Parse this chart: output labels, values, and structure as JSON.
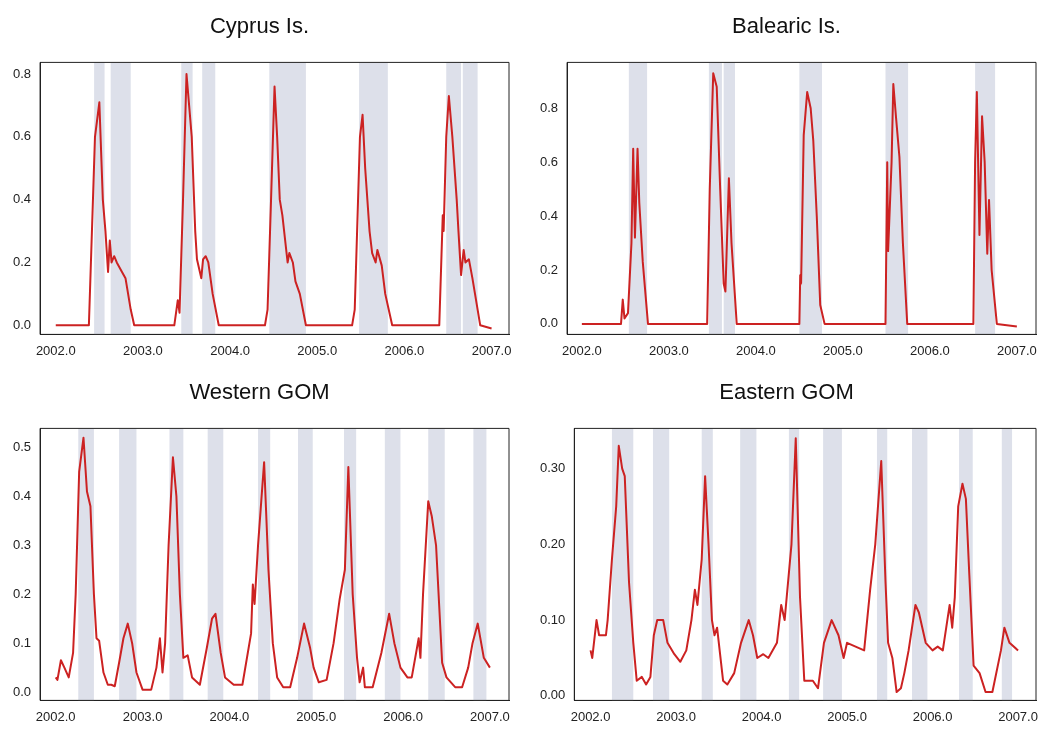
{
  "chart_data": [
    {
      "type": "line",
      "title": "Cyprus Is.",
      "color": "#cc2222",
      "xlim": [
        2001.82,
        2007.2
      ],
      "ylim": [
        -0.029,
        0.837
      ],
      "xticks": [
        {
          "value": 2002,
          "label": "2002.0"
        },
        {
          "value": 2003,
          "label": "2003.0"
        },
        {
          "value": 2004,
          "label": "2004.0"
        },
        {
          "value": 2005,
          "label": "2005.0"
        },
        {
          "value": 2006,
          "label": "2006.0"
        },
        {
          "value": 2007,
          "label": "2007.0"
        }
      ],
      "yticks": [
        {
          "value": 0,
          "label": "0.0"
        },
        0.2,
        0.4,
        0.6,
        0.8
      ],
      "bands": [
        {
          "axis": "x",
          "from": 2002.44,
          "to": 2002.56
        },
        {
          "axis": "x",
          "from": 2002.63,
          "to": 2002.86
        },
        {
          "axis": "x",
          "from": 2003.44,
          "to": 2003.57
        },
        {
          "axis": "x",
          "from": 2003.68,
          "to": 2003.83
        },
        {
          "axis": "x",
          "from": 2004.45,
          "to": 2004.87
        },
        {
          "axis": "x",
          "from": 2005.48,
          "to": 2005.81
        },
        {
          "axis": "x",
          "from": 2006.48,
          "to": 2006.65
        },
        {
          "axis": "x",
          "from": 2006.67,
          "to": 2006.84
        }
      ],
      "x": [
        2002.0,
        2002.38,
        2002.45,
        2002.5,
        2002.54,
        2002.57,
        2002.6,
        2002.62,
        2002.64,
        2002.67,
        2002.7,
        2002.76,
        2002.8,
        2002.86,
        2002.9,
        2003.36,
        2003.4,
        2003.42,
        2003.46,
        2003.5,
        2003.53,
        2003.56,
        2003.6,
        2003.62,
        2003.67,
        2003.69,
        2003.72,
        2003.75,
        2003.8,
        2003.87,
        2004.4,
        2004.43,
        2004.47,
        2004.51,
        2004.54,
        2004.57,
        2004.6,
        2004.66,
        2004.68,
        2004.72,
        2004.75,
        2004.8,
        2004.87,
        2005.4,
        2005.43,
        2005.49,
        2005.52,
        2005.55,
        2005.6,
        2005.63,
        2005.67,
        2005.69,
        2005.74,
        2005.78,
        2005.86,
        2006.4,
        2006.44,
        2006.45,
        2006.48,
        2006.51,
        2006.55,
        2006.6,
        2006.62,
        2006.65,
        2006.68,
        2006.7,
        2006.74,
        2006.78,
        2006.81,
        2006.87,
        2007.0
      ],
      "values": [
        0,
        0,
        0.6,
        0.71,
        0.4,
        0.3,
        0.17,
        0.27,
        0.2,
        0.22,
        0.2,
        0.17,
        0.15,
        0.05,
        0,
        0,
        0.08,
        0.04,
        0.4,
        0.8,
        0.7,
        0.6,
        0.3,
        0.21,
        0.15,
        0.21,
        0.22,
        0.2,
        0.1,
        0,
        0,
        0.05,
        0.4,
        0.76,
        0.6,
        0.4,
        0.35,
        0.2,
        0.23,
        0.2,
        0.14,
        0.1,
        0,
        0,
        0.05,
        0.6,
        0.67,
        0.5,
        0.3,
        0.23,
        0.2,
        0.24,
        0.19,
        0.1,
        0,
        0,
        0.35,
        0.3,
        0.6,
        0.73,
        0.6,
        0.4,
        0.3,
        0.16,
        0.24,
        0.2,
        0.21,
        0.15,
        0.1,
        0,
        -0.01
      ]
    },
    {
      "type": "line",
      "title": "Balearic Is.",
      "color": "#cc2222",
      "xlim": [
        2001.83,
        2007.22
      ],
      "ylim": [
        -0.039,
        0.97
      ],
      "xticks": [
        {
          "value": 2002,
          "label": "2002.0"
        },
        {
          "value": 2003,
          "label": "2003.0"
        },
        {
          "value": 2004,
          "label": "2004.0"
        },
        {
          "value": 2005,
          "label": "2005.0"
        },
        {
          "value": 2006,
          "label": "2006.0"
        },
        {
          "value": 2007,
          "label": "2007.0"
        }
      ],
      "yticks": [
        {
          "value": 0,
          "label": "0.0"
        },
        0.2,
        0.4,
        0.6,
        0.8
      ],
      "bands": [
        {
          "axis": "x",
          "from": 2002.54,
          "to": 2002.75
        },
        {
          "axis": "x",
          "from": 2003.46,
          "to": 2003.61
        },
        {
          "axis": "x",
          "from": 2003.63,
          "to": 2003.76
        },
        {
          "axis": "x",
          "from": 2004.5,
          "to": 2004.76
        },
        {
          "axis": "x",
          "from": 2005.49,
          "to": 2005.75
        },
        {
          "axis": "x",
          "from": 2006.52,
          "to": 2006.75
        }
      ],
      "x": [
        2002.0,
        2002.45,
        2002.47,
        2002.49,
        2002.53,
        2002.57,
        2002.59,
        2002.61,
        2002.64,
        2002.66,
        2002.7,
        2002.76,
        2003.44,
        2003.47,
        2003.51,
        2003.55,
        2003.59,
        2003.63,
        2003.65,
        2003.69,
        2003.72,
        2003.78,
        2004.5,
        2004.51,
        2004.52,
        2004.55,
        2004.59,
        2004.63,
        2004.66,
        2004.7,
        2004.74,
        2004.79,
        2005.49,
        2005.51,
        2005.52,
        2005.56,
        2005.58,
        2005.61,
        2005.65,
        2005.69,
        2005.74,
        2006.5,
        2006.52,
        2006.54,
        2006.57,
        2006.6,
        2006.63,
        2006.66,
        2006.68,
        2006.71,
        2006.77,
        2007.0
      ],
      "values": [
        0,
        0,
        0.09,
        0.02,
        0.04,
        0.3,
        0.65,
        0.32,
        0.65,
        0.45,
        0.23,
        0,
        0,
        0.5,
        0.93,
        0.88,
        0.5,
        0.15,
        0.12,
        0.54,
        0.3,
        0,
        0,
        0.18,
        0.15,
        0.7,
        0.86,
        0.8,
        0.68,
        0.4,
        0.07,
        0,
        0,
        0.6,
        0.27,
        0.6,
        0.89,
        0.77,
        0.62,
        0.3,
        0,
        0,
        0.6,
        0.86,
        0.33,
        0.77,
        0.6,
        0.26,
        0.46,
        0.2,
        0,
        -0.01
      ]
    },
    {
      "type": "line",
      "title": "Western GOM",
      "color": "#cc2222",
      "xlim": [
        2001.82,
        2007.22
      ],
      "ylim": [
        -0.017,
        0.539
      ],
      "xticks": [
        {
          "value": 2002,
          "label": "2002.0"
        },
        {
          "value": 2003,
          "label": "2003.0"
        },
        {
          "value": 2004,
          "label": "2004.0"
        },
        {
          "value": 2005,
          "label": "2005.0"
        },
        {
          "value": 2006,
          "label": "2006.0"
        },
        {
          "value": 2007,
          "label": "2007.0"
        }
      ],
      "yticks": [
        {
          "value": 0,
          "label": "0.0"
        },
        0.1,
        0.2,
        0.3,
        0.4,
        0.5
      ],
      "bands": [
        {
          "axis": "x",
          "from": 2002.26,
          "to": 2002.44
        },
        {
          "axis": "x",
          "from": 2002.73,
          "to": 2002.93
        },
        {
          "axis": "x",
          "from": 2003.31,
          "to": 2003.47
        },
        {
          "axis": "x",
          "from": 2003.75,
          "to": 2003.93
        },
        {
          "axis": "x",
          "from": 2004.33,
          "to": 2004.47
        },
        {
          "axis": "x",
          "from": 2004.79,
          "to": 2004.96
        },
        {
          "axis": "x",
          "from": 2005.32,
          "to": 2005.46
        },
        {
          "axis": "x",
          "from": 2005.79,
          "to": 2005.97
        },
        {
          "axis": "x",
          "from": 2006.29,
          "to": 2006.48
        },
        {
          "axis": "x",
          "from": 2006.81,
          "to": 2006.96
        }
      ],
      "x": [
        2002.0,
        2002.02,
        2002.06,
        2002.1,
        2002.15,
        2002.2,
        2002.23,
        2002.27,
        2002.32,
        2002.36,
        2002.4,
        2002.44,
        2002.47,
        2002.5,
        2002.55,
        2002.6,
        2002.64,
        2002.68,
        2002.73,
        2002.78,
        2002.83,
        2002.88,
        2002.93,
        2003.0,
        2003.1,
        2003.16,
        2003.2,
        2003.23,
        2003.26,
        2003.3,
        2003.35,
        2003.39,
        2003.43,
        2003.47,
        2003.52,
        2003.57,
        2003.66,
        2003.74,
        2003.8,
        2003.84,
        2003.9,
        2003.95,
        2004.05,
        2004.15,
        2004.25,
        2004.27,
        2004.29,
        2004.33,
        2004.4,
        2004.45,
        2004.5,
        2004.55,
        2004.62,
        2004.7,
        2004.78,
        2004.86,
        2004.93,
        2004.97,
        2005.03,
        2005.12,
        2005.2,
        2005.27,
        2005.33,
        2005.37,
        2005.42,
        2005.47,
        2005.5,
        2005.54,
        2005.56,
        2005.65,
        2005.75,
        2005.84,
        2005.9,
        2005.97,
        2006.05,
        2006.1,
        2006.18,
        2006.2,
        2006.23,
        2006.29,
        2006.33,
        2006.38,
        2006.45,
        2006.5,
        2006.6,
        2006.68,
        2006.75,
        2006.8,
        2006.86,
        2006.93,
        2007.0
      ],
      "values": [
        0.03,
        0.025,
        0.065,
        0.05,
        0.03,
        0.08,
        0.2,
        0.45,
        0.52,
        0.41,
        0.38,
        0.2,
        0.11,
        0.105,
        0.04,
        0.015,
        0.015,
        0.012,
        0.06,
        0.11,
        0.14,
        0.1,
        0.04,
        0.005,
        0.005,
        0.05,
        0.11,
        0.04,
        0.1,
        0.3,
        0.48,
        0.4,
        0.2,
        0.07,
        0.075,
        0.03,
        0.015,
        0.09,
        0.15,
        0.16,
        0.08,
        0.03,
        0.015,
        0.015,
        0.12,
        0.22,
        0.18,
        0.3,
        0.47,
        0.25,
        0.1,
        0.03,
        0.01,
        0.01,
        0.07,
        0.14,
        0.09,
        0.05,
        0.02,
        0.025,
        0.1,
        0.19,
        0.25,
        0.46,
        0.2,
        0.07,
        0.02,
        0.05,
        0.01,
        0.01,
        0.08,
        0.16,
        0.1,
        0.05,
        0.03,
        0.03,
        0.11,
        0.07,
        0.2,
        0.39,
        0.36,
        0.3,
        0.06,
        0.03,
        0.01,
        0.01,
        0.05,
        0.1,
        0.14,
        0.07,
        0.05
      ]
    },
    {
      "type": "line",
      "title": "Eastern GOM",
      "color": "#cc2222",
      "xlim": [
        2001.81,
        2007.21
      ],
      "ylim": [
        -0.006,
        0.353
      ],
      "xticks": [
        {
          "value": 2002,
          "label": "2002.0"
        },
        {
          "value": 2003,
          "label": "2003.0"
        },
        {
          "value": 2004,
          "label": "2004.0"
        },
        {
          "value": 2005,
          "label": "2005.0"
        },
        {
          "value": 2006,
          "label": "2006.0"
        },
        {
          "value": 2007,
          "label": "2007.0"
        }
      ],
      "yticks": [
        {
          "value": 0,
          "label": "0.00"
        },
        {
          "value": 0.1,
          "label": "0.10"
        },
        {
          "value": 0.2,
          "label": "0.20"
        },
        {
          "value": 0.3,
          "label": "0.30"
        }
      ],
      "bands": [
        {
          "axis": "x",
          "from": 2002.25,
          "to": 2002.5
        },
        {
          "axis": "x",
          "from": 2002.73,
          "to": 2002.92
        },
        {
          "axis": "x",
          "from": 2003.3,
          "to": 2003.43
        },
        {
          "axis": "x",
          "from": 2003.75,
          "to": 2003.94
        },
        {
          "axis": "x",
          "from": 2004.32,
          "to": 2004.44
        },
        {
          "axis": "x",
          "from": 2004.72,
          "to": 2004.94
        },
        {
          "axis": "x",
          "from": 2005.35,
          "to": 2005.47
        },
        {
          "axis": "x",
          "from": 2005.76,
          "to": 2005.94
        },
        {
          "axis": "x",
          "from": 2006.31,
          "to": 2006.47
        },
        {
          "axis": "x",
          "from": 2006.81,
          "to": 2006.93
        }
      ],
      "x": [
        2002.0,
        2002.02,
        2002.07,
        2002.1,
        2002.18,
        2002.2,
        2002.25,
        2002.3,
        2002.33,
        2002.37,
        2002.4,
        2002.45,
        2002.5,
        2002.54,
        2002.6,
        2002.65,
        2002.7,
        2002.74,
        2002.78,
        2002.85,
        2002.9,
        2002.98,
        2003.05,
        2003.12,
        2003.18,
        2003.22,
        2003.25,
        2003.3,
        2003.34,
        2003.38,
        2003.42,
        2003.45,
        2003.48,
        2003.55,
        2003.6,
        2003.68,
        2003.76,
        2003.85,
        2003.9,
        2003.95,
        2004.02,
        2004.08,
        2004.18,
        2004.23,
        2004.27,
        2004.35,
        2004.4,
        2004.45,
        2004.5,
        2004.6,
        2004.66,
        2004.73,
        2004.82,
        2004.9,
        2004.96,
        2005.0,
        2005.1,
        2005.2,
        2005.27,
        2005.33,
        2005.4,
        2005.45,
        2005.48,
        2005.53,
        2005.58,
        2005.63,
        2005.67,
        2005.72,
        2005.8,
        2005.84,
        2005.92,
        2006.0,
        2006.06,
        2006.12,
        2006.2,
        2006.23,
        2006.26,
        2006.3,
        2006.35,
        2006.39,
        2006.43,
        2006.48,
        2006.55,
        2006.62,
        2006.7,
        2006.8,
        2006.84,
        2006.9,
        2007.0
      ],
      "values": [
        0.06,
        0.05,
        0.1,
        0.08,
        0.08,
        0.1,
        0.18,
        0.25,
        0.33,
        0.3,
        0.29,
        0.15,
        0.07,
        0.02,
        0.025,
        0.015,
        0.025,
        0.08,
        0.1,
        0.1,
        0.07,
        0.055,
        0.045,
        0.06,
        0.1,
        0.14,
        0.12,
        0.18,
        0.29,
        0.2,
        0.1,
        0.08,
        0.09,
        0.02,
        0.015,
        0.03,
        0.07,
        0.1,
        0.08,
        0.05,
        0.055,
        0.05,
        0.07,
        0.12,
        0.1,
        0.2,
        0.34,
        0.13,
        0.02,
        0.02,
        0.01,
        0.07,
        0.1,
        0.08,
        0.05,
        0.07,
        0.065,
        0.06,
        0.14,
        0.2,
        0.31,
        0.15,
        0.07,
        0.05,
        0.005,
        0.01,
        0.03,
        0.06,
        0.12,
        0.11,
        0.07,
        0.06,
        0.065,
        0.06,
        0.12,
        0.09,
        0.13,
        0.25,
        0.28,
        0.26,
        0.16,
        0.04,
        0.03,
        0.005,
        0.005,
        0.06,
        0.09,
        0.07,
        0.06
      ]
    }
  ]
}
